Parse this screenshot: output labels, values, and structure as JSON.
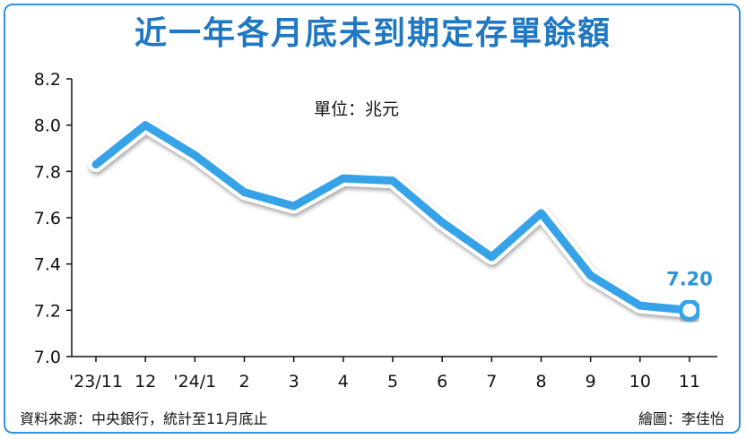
{
  "title": "近一年各月底未到期定存單餘額",
  "unit_label": "單位：兆元",
  "source": "資料來源：中央銀行，統計至11月底止",
  "credit": "繪圖：李佳怡",
  "line_color": "#36a3e8",
  "chart_data": {
    "type": "line",
    "categories": [
      "'23/11",
      "12",
      "'24/1",
      "2",
      "3",
      "4",
      "5",
      "6",
      "7",
      "8",
      "9",
      "10",
      "11"
    ],
    "values": [
      7.83,
      8.0,
      7.87,
      7.71,
      7.65,
      7.77,
      7.76,
      7.58,
      7.43,
      7.62,
      7.35,
      7.22,
      7.2
    ],
    "ylim": [
      7.0,
      8.2
    ],
    "yticks": [
      "7.0",
      "7.2",
      "7.4",
      "7.6",
      "7.8",
      "8.0",
      "8.2"
    ],
    "last_value_label": "7.20",
    "grid": false
  }
}
